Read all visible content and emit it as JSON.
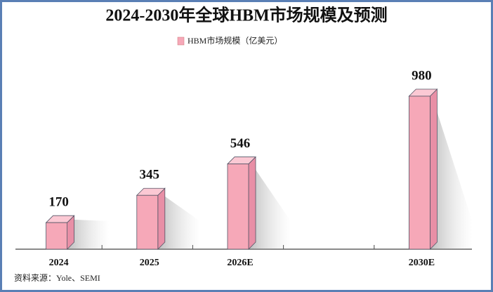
{
  "chart_data": {
    "type": "bar3d",
    "title": "2024-2030年全球HBM市场规模及预测",
    "categories": [
      "2024",
      "2025",
      "2026E",
      null,
      "2030E"
    ],
    "series": [
      {
        "name": "HBM市场规模（亿美元）",
        "color": "#f6a8b8",
        "values": [
          170,
          345,
          546,
          null,
          980
        ]
      }
    ],
    "source": "资料来源：Yole、SEMI"
  }
}
